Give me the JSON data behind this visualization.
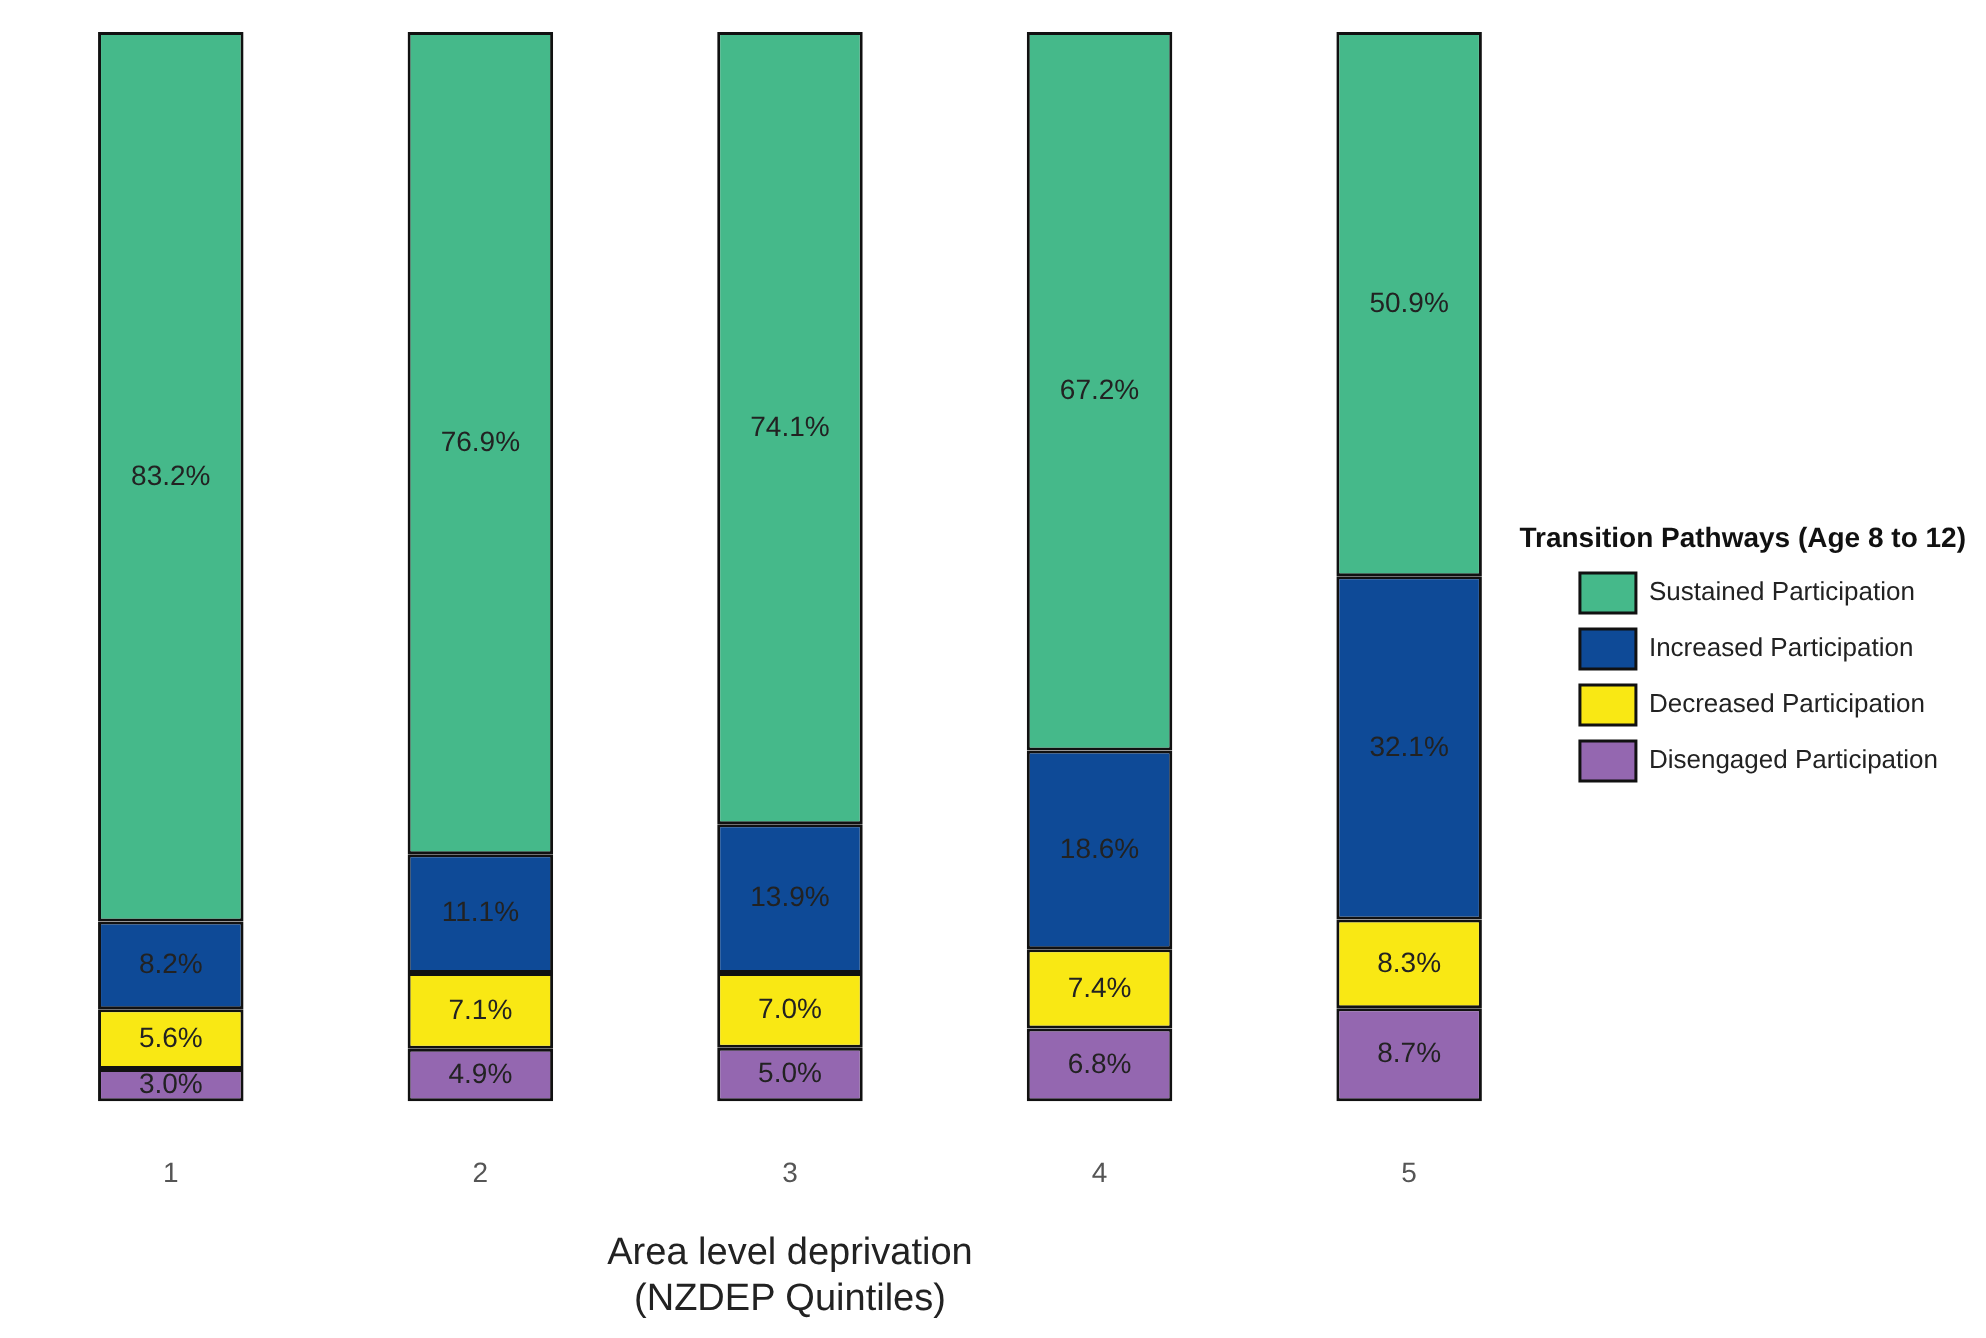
{
  "chart_data": {
    "type": "bar",
    "stacked": true,
    "xlabel": "Area level deprivation\n(NZDEP Quintiles)",
    "legend_title": "Transition Pathways (Age 8 to 12)",
    "legend": "right",
    "categories": [
      "1",
      "2",
      "3",
      "4",
      "5"
    ],
    "series": [
      {
        "name": "Disengaged Participation",
        "color": "#9467b0",
        "values": [
          3.0,
          4.9,
          5.0,
          6.8,
          8.7
        ],
        "value_labels": [
          "3.0%",
          "4.9%",
          "5.0%",
          "6.8%",
          "8.7%"
        ]
      },
      {
        "name": "Decreased Participation",
        "color": "#f9e814",
        "values": [
          5.6,
          7.1,
          7.0,
          7.4,
          8.3
        ],
        "value_labels": [
          "5.6%",
          "7.1%",
          "7.0%",
          "7.4%",
          "8.3%"
        ]
      },
      {
        "name": "Increased Participation",
        "color": "#0e4a97",
        "values": [
          8.2,
          11.1,
          13.9,
          18.6,
          32.1
        ],
        "value_labels": [
          "8.2%",
          "11.1%",
          "13.9%",
          "18.6%",
          "32.1%"
        ]
      },
      {
        "name": "Sustained Participation",
        "color": "#45b98a",
        "values": [
          83.2,
          76.9,
          74.1,
          67.2,
          50.9
        ],
        "value_labels": [
          "83.2%",
          "76.9%",
          "74.1%",
          "67.2%",
          "50.9%"
        ]
      }
    ]
  }
}
